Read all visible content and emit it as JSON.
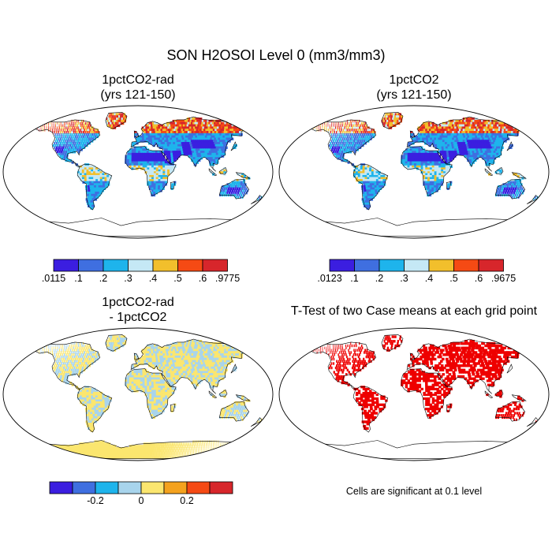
{
  "title": "SON H2OSOI Level 0 (mm3/mm3)",
  "panels": [
    {
      "line1": "1pctCO2-rad",
      "line2": "(yrs 121-150)"
    },
    {
      "line1": "1pctCO2",
      "line2": "(yrs 121-150)"
    },
    {
      "line1": "1pctCO2-rad",
      "line2": "- 1pctCO2"
    },
    {
      "line1": "T-Test of two Case means at each grid point",
      "line2": ""
    }
  ],
  "colorbars": {
    "abs_colors": [
      "#3b1ee0",
      "#3f6fe0",
      "#1eb4ec",
      "#c5e8f5",
      "#f2bf2c",
      "#f54a14",
      "#d7262b"
    ],
    "left_labels": [
      ".0115",
      ".1",
      ".2",
      ".3",
      ".4",
      ".5",
      ".6",
      ".9775"
    ],
    "right_labels": [
      ".0123",
      ".1",
      ".2",
      ".3",
      ".4",
      ".5",
      ".6",
      ".9675"
    ],
    "diff_colors": [
      "#3b1ee0",
      "#3f6fe0",
      "#1eb4ec",
      "#a8d4ec",
      "#fbe66f",
      "#f4a21e",
      "#f54a14",
      "#d7262b"
    ],
    "diff_labels": [
      "-0.2",
      "0",
      "0.2"
    ]
  },
  "significance_note": "Cells are significant at 0.1 level",
  "sig_color": "#ee0000"
}
